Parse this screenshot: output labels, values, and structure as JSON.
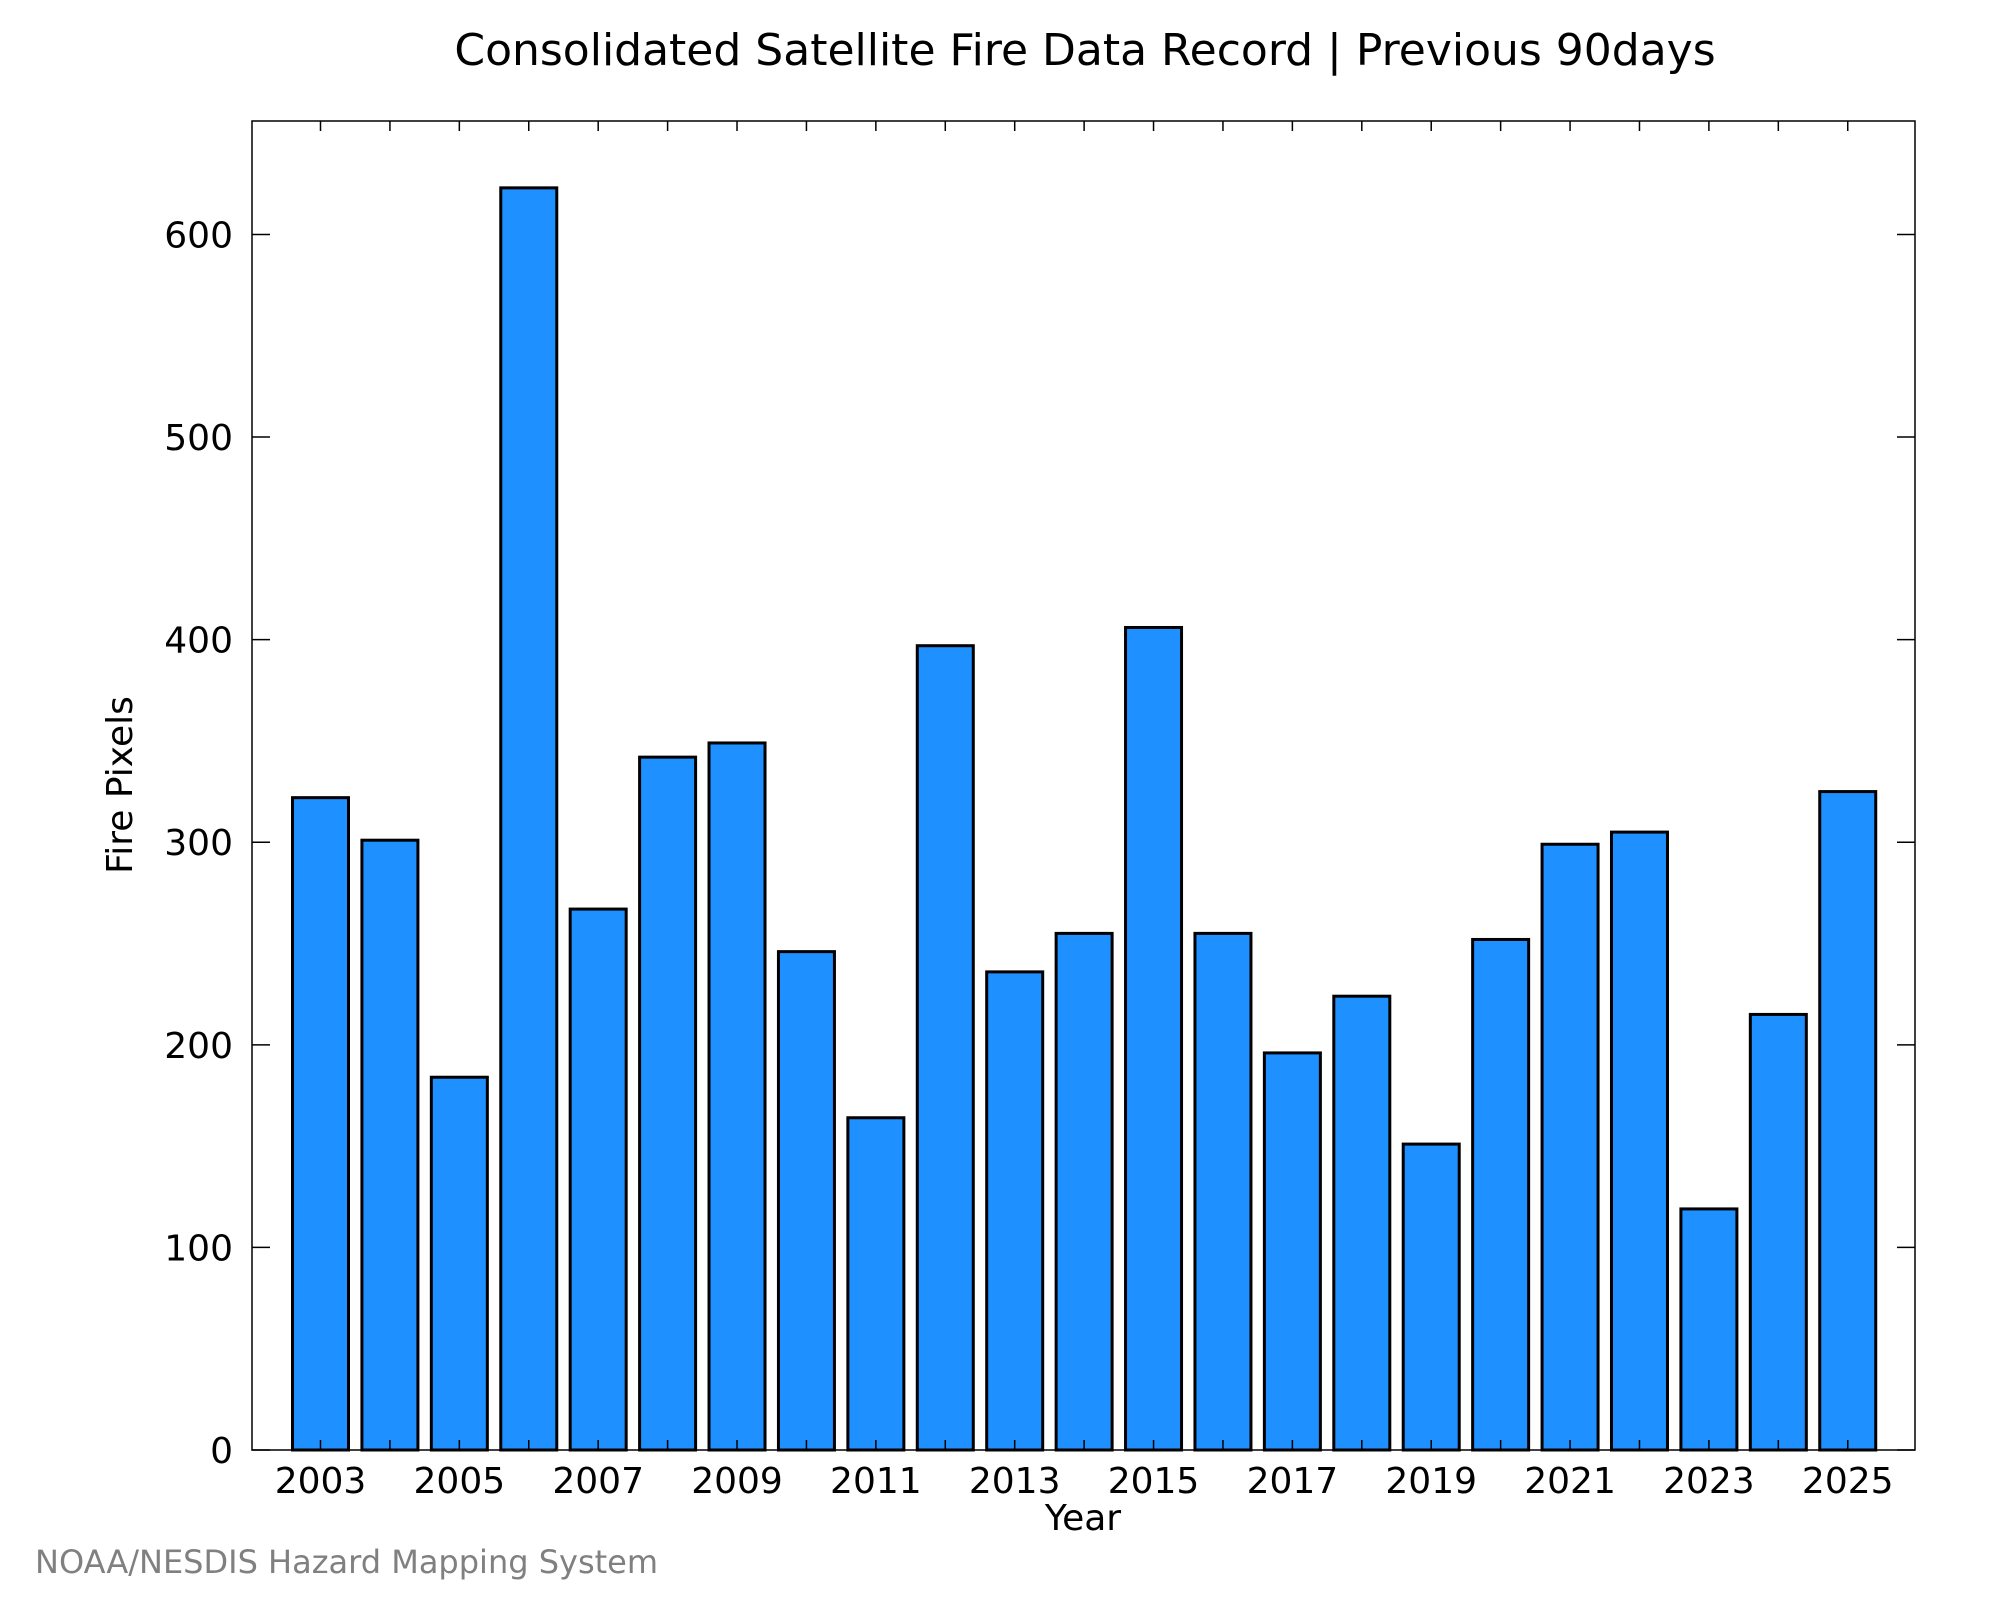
{
  "chart_data": {
    "type": "bar",
    "title": "Consolidated Satellite Fire Data Record | Previous 90days",
    "xlabel": "Year",
    "ylabel": "Fire Pixels",
    "categories": [
      "2003",
      "2004",
      "2005",
      "2006",
      "2007",
      "2008",
      "2009",
      "2010",
      "2011",
      "2012",
      "2013",
      "2014",
      "2015",
      "2016",
      "2017",
      "2018",
      "2019",
      "2020",
      "2021",
      "2022",
      "2023",
      "2024",
      "2025"
    ],
    "values": [
      322,
      301,
      184,
      623,
      267,
      342,
      349,
      246,
      164,
      397,
      236,
      255,
      406,
      255,
      196,
      224,
      151,
      252,
      299,
      305,
      119,
      215,
      325
    ],
    "x_tick_labels": [
      "2003",
      "2005",
      "2007",
      "2009",
      "2011",
      "2013",
      "2015",
      "2017",
      "2019",
      "2021",
      "2023",
      "2025"
    ],
    "y_ticks": [
      0,
      100,
      200,
      300,
      400,
      500,
      600
    ],
    "ylim": [
      0,
      656
    ],
    "bar_color": "#1e90ff",
    "edge_color": "#000000",
    "grid": false
  },
  "footer": {
    "credit": "NOAA/NESDIS Hazard Mapping System"
  }
}
